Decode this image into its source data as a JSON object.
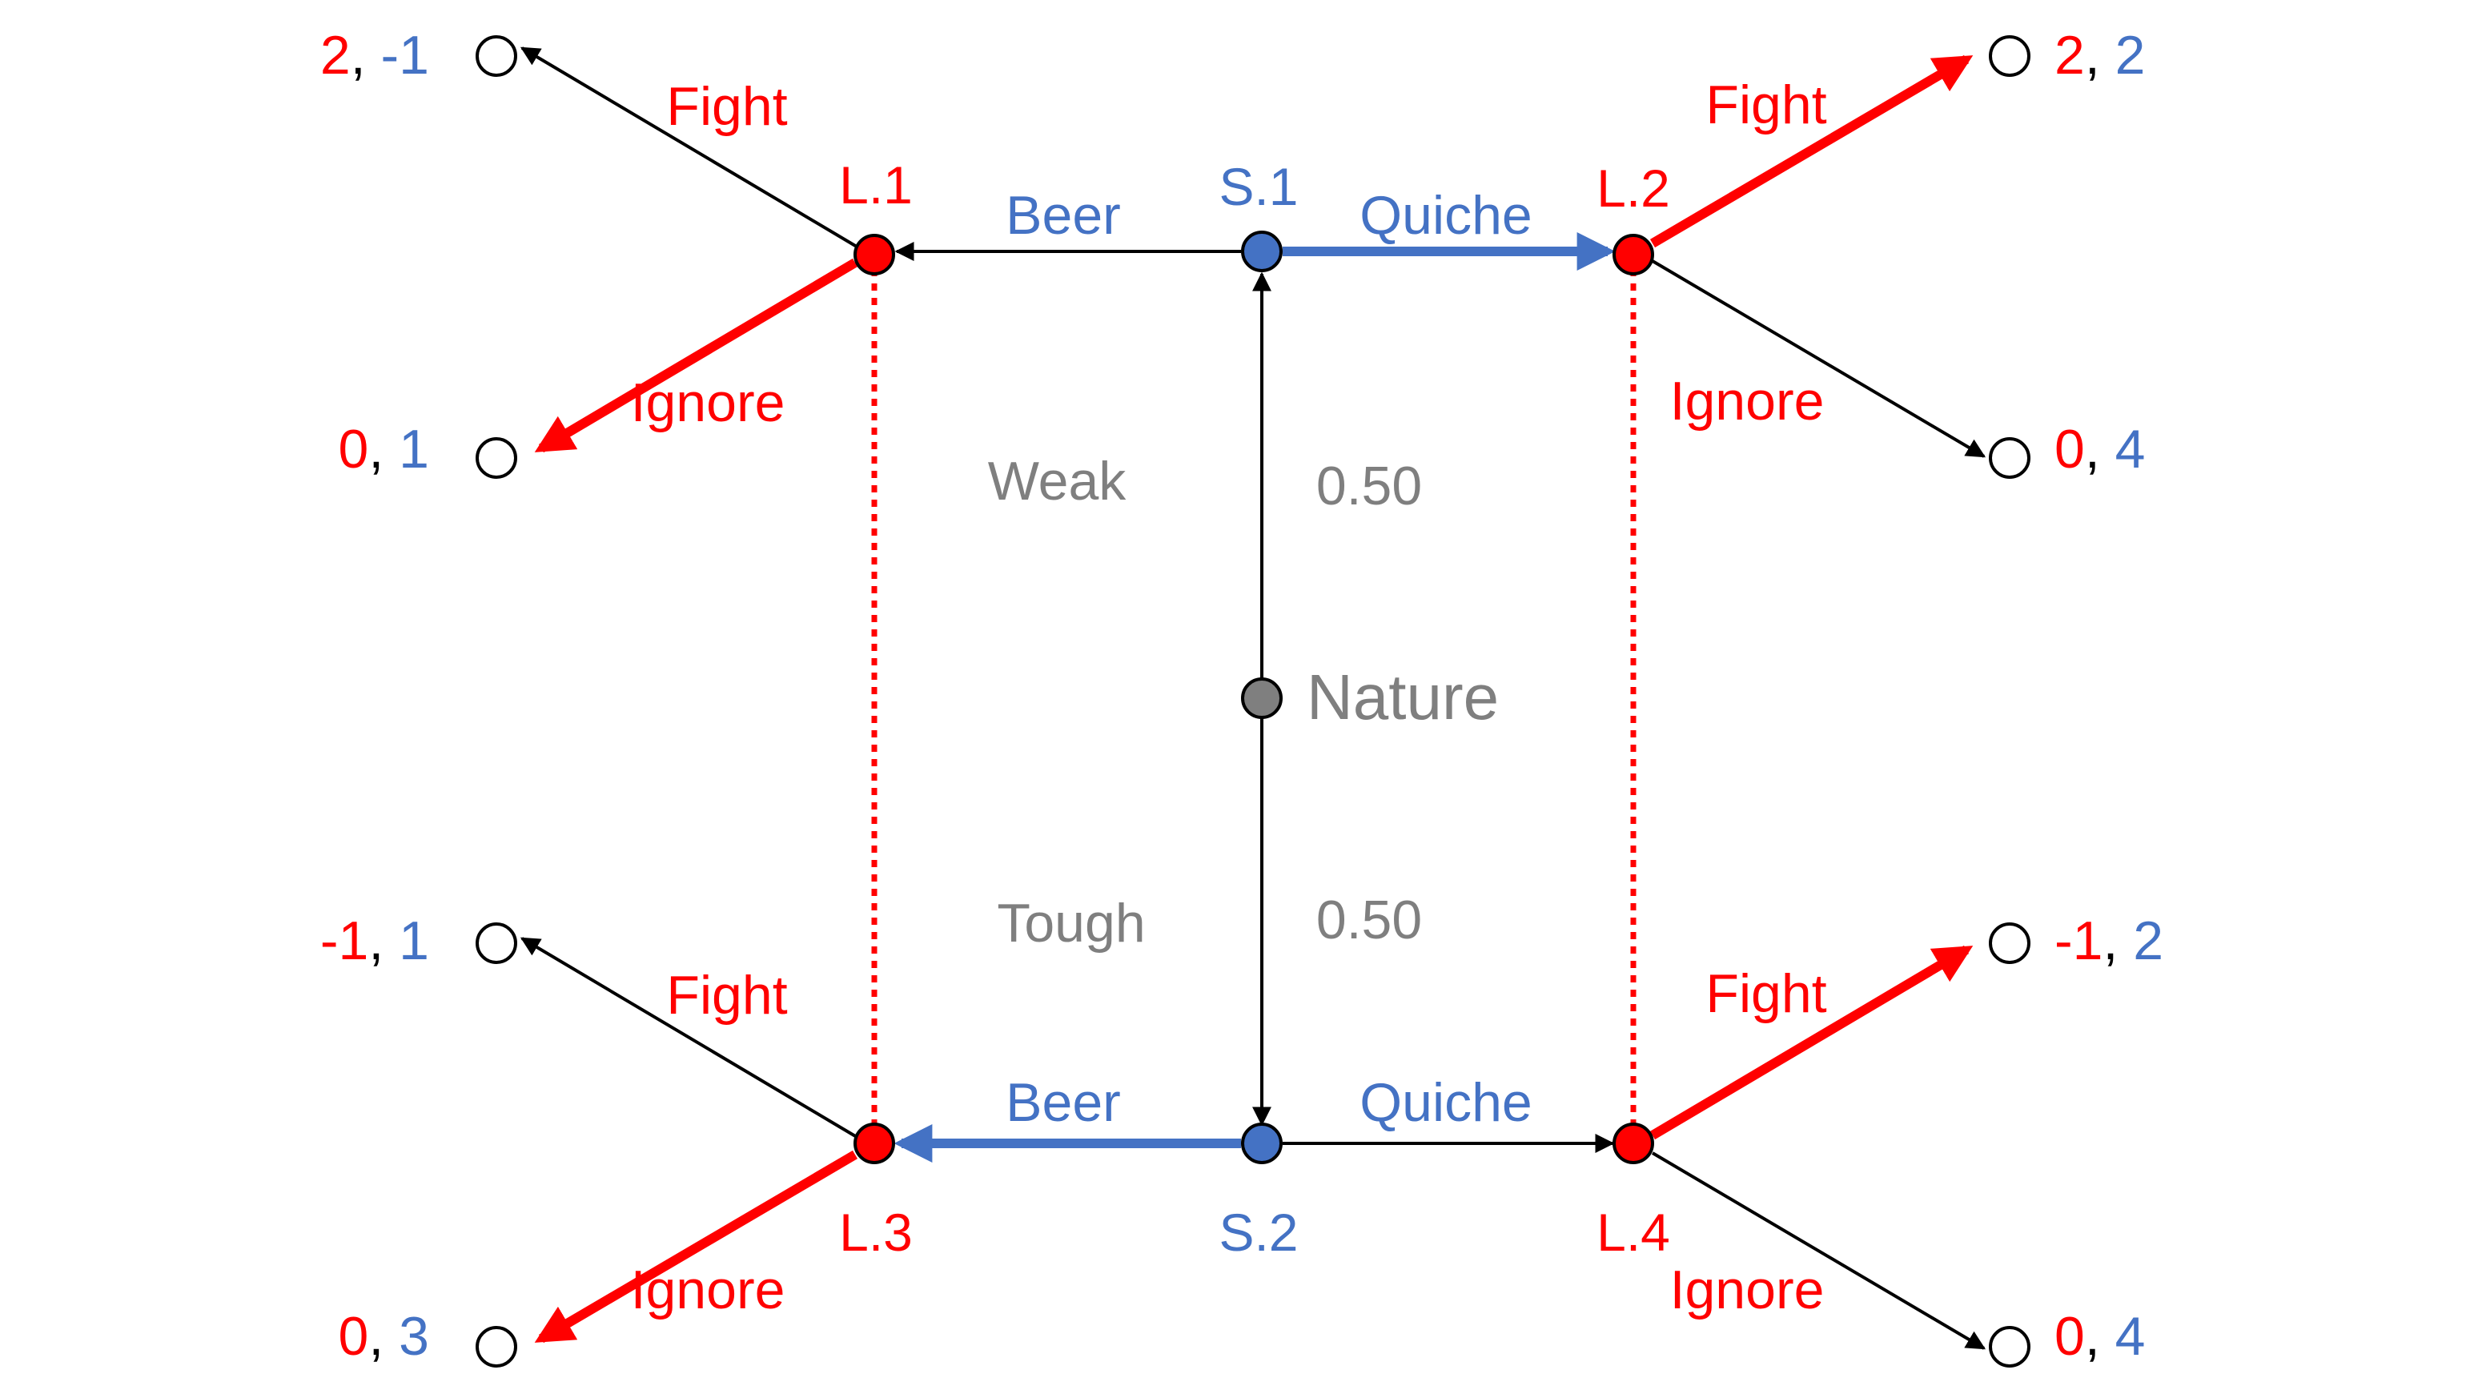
{
  "colors": {
    "leader": "#ff0000",
    "sender": "#4472c4",
    "nature": "#7f7f7f",
    "edge": "#000000",
    "terminal_fill": "#ffffff"
  },
  "nodes": {
    "s1": "S.1",
    "s2": "S.2",
    "l1": "L.1",
    "l2": "L.2",
    "l3": "L.3",
    "l4": "L.4",
    "nature": "Nature"
  },
  "types": {
    "weak": "Weak",
    "tough": "Tough"
  },
  "probabilities": {
    "weak": "0.50",
    "tough": "0.50"
  },
  "actions": {
    "beer_top": "Beer",
    "quiche_top": "Quiche",
    "beer_bottom": "Beer",
    "quiche_bottom": "Quiche",
    "l1_fight": "Fight",
    "l1_ignore": "Ignore",
    "l2_fight": "Fight",
    "l2_ignore": "Ignore",
    "l3_fight": "Fight",
    "l3_ignore": "Ignore",
    "l4_fight": "Fight",
    "l4_ignore": "Ignore"
  },
  "payoffs": {
    "l1_fight": {
      "leader": "2",
      "sender": "-1"
    },
    "l1_ignore": {
      "leader": "0",
      "sender": "1"
    },
    "l2_fight": {
      "leader": "2",
      "sender": "2"
    },
    "l2_ignore": {
      "leader": "0",
      "sender": "4"
    },
    "l3_fight": {
      "leader": "-1",
      "sender": "1"
    },
    "l3_ignore": {
      "leader": "0",
      "sender": "3"
    },
    "l4_fight": {
      "leader": "-1",
      "sender": "2"
    },
    "l4_ignore": {
      "leader": "0",
      "sender": "4"
    },
    "separator": ", "
  }
}
